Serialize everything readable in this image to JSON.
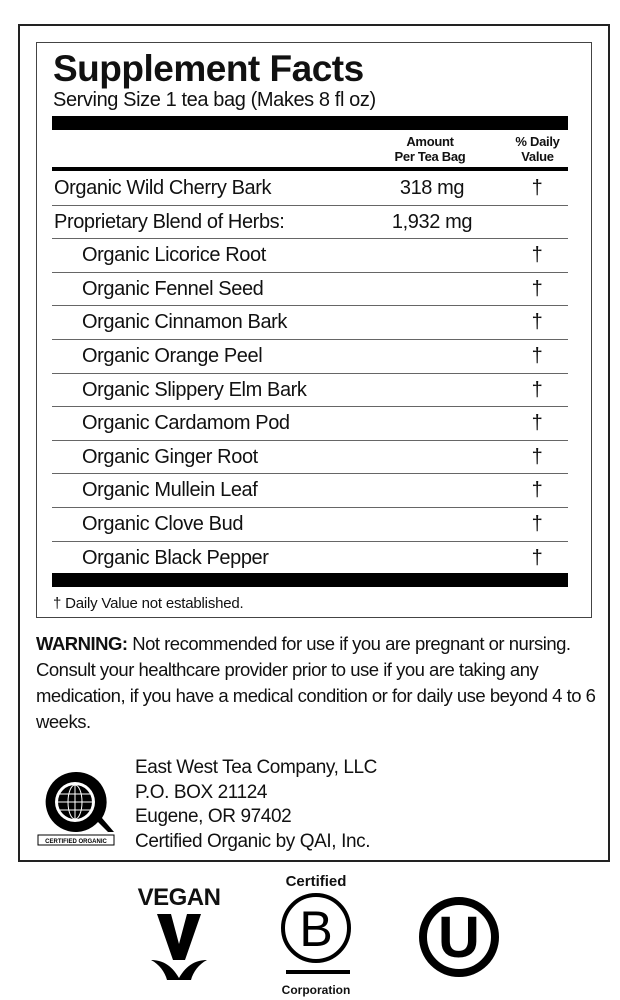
{
  "title": "Supplement Facts",
  "serving_size": "Serving Size 1 tea bag (Makes 8 fl oz)",
  "headers": {
    "amount_1": "Amount",
    "amount_2": "Per Tea Bag",
    "dv_1": "% Daily",
    "dv_2": "Value"
  },
  "rows": [
    {
      "name": "Organic Wild Cherry Bark",
      "amount": "318 mg",
      "dv": "†"
    },
    {
      "name": "Proprietary Blend of Herbs:",
      "amount": "1,932 mg",
      "dv": ""
    },
    {
      "name": "Organic Licorice Root",
      "amount": "",
      "dv": "†"
    },
    {
      "name": "Organic Fennel Seed",
      "amount": "",
      "dv": "†"
    },
    {
      "name": "Organic Cinnamon Bark",
      "amount": "",
      "dv": "†"
    },
    {
      "name": "Organic Orange Peel",
      "amount": "",
      "dv": "†"
    },
    {
      "name": "Organic Slippery Elm Bark",
      "amount": "",
      "dv": "†"
    },
    {
      "name": "Organic Cardamom Pod",
      "amount": "",
      "dv": "†"
    },
    {
      "name": "Organic Ginger Root",
      "amount": "",
      "dv": "†"
    },
    {
      "name": "Organic Mullein Leaf",
      "amount": "",
      "dv": "†"
    },
    {
      "name": "Organic Clove Bud",
      "amount": "",
      "dv": "†"
    },
    {
      "name": "Organic Black Pepper",
      "amount": "",
      "dv": "†"
    }
  ],
  "footnote": "† Daily Value not established.",
  "warning": {
    "label": "WARNING:",
    "text": " Not recommended for use if you are pregnant or nursing. Consult your healthcare provider prior to use if you are taking any medication, if you have a medical condition or for daily use beyond 4 to 6 weeks."
  },
  "address": [
    "East West Tea Company, LLC",
    "P.O. BOX 21124",
    "Eugene, OR 97402",
    "Certified Organic by QAI, Inc."
  ],
  "logos": {
    "qai": "CERTIFIED ORGANIC",
    "vegan": "VEGAN",
    "bcorp_top": "Certified",
    "bcorp_letter": "B",
    "bcorp_bottom": "Corporation",
    "ou_letter": "U"
  }
}
